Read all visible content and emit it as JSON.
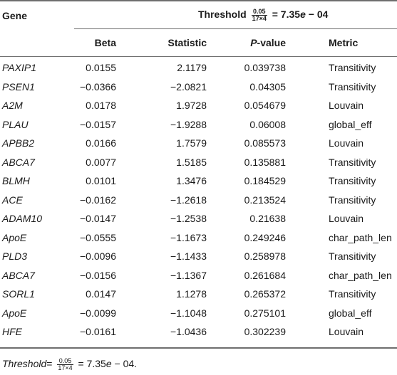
{
  "table": {
    "col_gene": "Gene",
    "threshold": {
      "label": "Threshold",
      "numerator": "0.05",
      "denominator": "17×4",
      "eq_prefix": "= 7.35",
      "e": "e",
      "eq_suffix": "− 04"
    },
    "headers": {
      "beta": "Beta",
      "statistic": "Statistic",
      "p_italic": "P",
      "p_rest": "-value",
      "metric": "Metric"
    },
    "rows": [
      {
        "gene": "PAXIP1",
        "beta": "0.0155",
        "statistic": "2.1179",
        "p": "0.039738",
        "metric": "Transitivity"
      },
      {
        "gene": "PSEN1",
        "beta": "−0.0366",
        "statistic": "−2.0821",
        "p": "0.04305",
        "metric": "Transitivity"
      },
      {
        "gene": "A2M",
        "beta": "0.0178",
        "statistic": "1.9728",
        "p": "0.054679",
        "metric": "Louvain"
      },
      {
        "gene": "PLAU",
        "beta": "−0.0157",
        "statistic": "−1.9288",
        "p": "0.06008",
        "metric": "global_eff"
      },
      {
        "gene": "APBB2",
        "beta": "0.0166",
        "statistic": "1.7579",
        "p": "0.085573",
        "metric": "Louvain"
      },
      {
        "gene": "ABCA7",
        "beta": "0.0077",
        "statistic": "1.5185",
        "p": "0.135881",
        "metric": "Transitivity"
      },
      {
        "gene": "BLMH",
        "beta": "0.0101",
        "statistic": "1.3476",
        "p": "0.184529",
        "metric": "Transitivity"
      },
      {
        "gene": "ACE",
        "beta": "−0.0162",
        "statistic": "−1.2618",
        "p": "0.213524",
        "metric": "Transitivity"
      },
      {
        "gene": "ADAM10",
        "beta": "−0.0147",
        "statistic": "−1.2538",
        "p": "0.21638",
        "metric": "Louvain"
      },
      {
        "gene": "ApoE",
        "beta": "−0.0555",
        "statistic": "−1.1673",
        "p": "0.249246",
        "metric": "char_path_len"
      },
      {
        "gene": "PLD3",
        "beta": "−0.0096",
        "statistic": "−1.1433",
        "p": "0.258978",
        "metric": "Transitivity"
      },
      {
        "gene": "ABCA7",
        "beta": "−0.0156",
        "statistic": "−1.1367",
        "p": "0.261684",
        "metric": "char_path_len"
      },
      {
        "gene": "SORL1",
        "beta": "0.0147",
        "statistic": "1.1278",
        "p": "0.265372",
        "metric": "Transitivity"
      },
      {
        "gene": "ApoE",
        "beta": "−0.0099",
        "statistic": "−1.1048",
        "p": "0.275101",
        "metric": "global_eff"
      },
      {
        "gene": "HFE",
        "beta": "−0.0161",
        "statistic": "−1.0436",
        "p": "0.302239",
        "metric": "Louvain"
      }
    ]
  },
  "footnote": {
    "label": "Threshold",
    "eq": "=",
    "numerator": "0.05",
    "denominator": "17×4",
    "eq_prefix": "= 7.35",
    "e": "e",
    "eq_suffix": "− 04."
  }
}
